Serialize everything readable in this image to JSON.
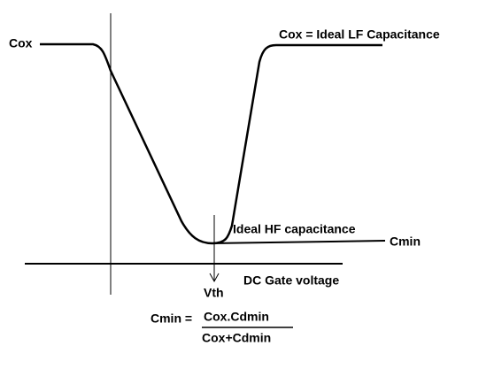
{
  "labels": {
    "cox": "Cox",
    "lf_curve": "Cox = Ideal LF Capacitance",
    "hf_curve": "Ideal HF capacitance",
    "cmin": "Cmin",
    "x_axis": "DC Gate voltage",
    "vth": "Vth"
  },
  "formula": {
    "lhs": "Cmin =",
    "numerator": "Cox.Cdmin",
    "denominator": "Cox+Cdmin"
  }
}
